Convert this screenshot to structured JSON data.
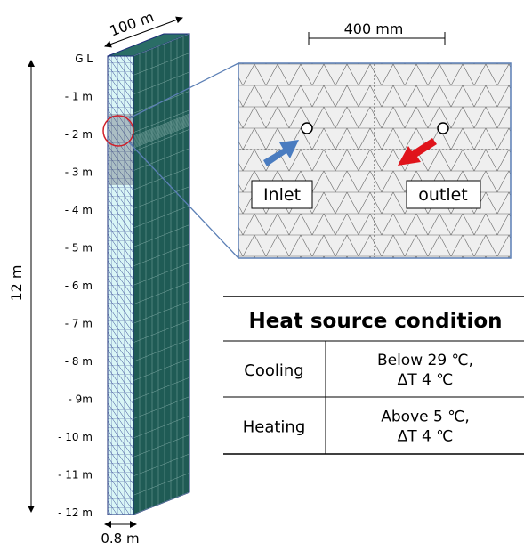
{
  "column": {
    "width_label": "100 m",
    "height_label": "12 m",
    "thickness_label": "0.8 m",
    "depth_labels": [
      "G L",
      "- 1 m",
      "- 2 m",
      "- 3 m",
      "- 4 m",
      "- 5 m",
      "- 6 m",
      "- 7 m",
      "- 8 m",
      "- 9m",
      "- 10 m",
      "- 11 m",
      "- 12 m"
    ]
  },
  "detail": {
    "spacing_label": "400 mm",
    "inlet": "Inlet",
    "outlet": "outlet"
  },
  "table": {
    "title": "Heat source condition",
    "rows": [
      [
        "Cooling",
        [
          "Below 29 ℃,",
          "ΔT 4 ℃"
        ]
      ],
      [
        "Heating",
        [
          "Above 5 ℃,",
          "ΔT 4 ℃"
        ]
      ]
    ]
  }
}
